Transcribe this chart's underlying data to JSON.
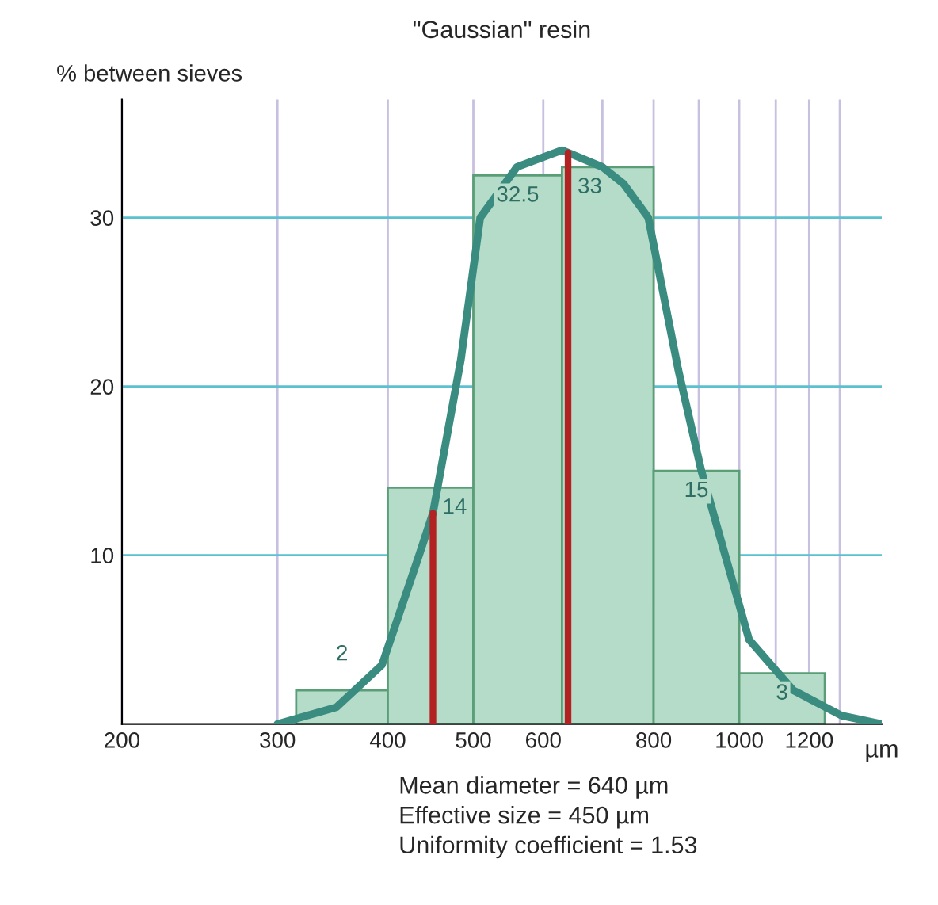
{
  "chart_data": {
    "type": "histogram",
    "title": "\"Gaussian\" resin",
    "ylabel": "% between sieves",
    "xlabel": "µm",
    "bins": [
      315,
      400,
      500,
      630,
      800,
      1000,
      1250
    ],
    "values": [
      2,
      14,
      32.5,
      33,
      15,
      3
    ],
    "color": "#b5dcc8",
    "value_labels": [
      "2",
      "14",
      "32.5",
      "33",
      "15",
      "3"
    ],
    "series": [
      {
        "type": "line",
        "color": "#3a8c80",
        "x": [
          300,
          350,
          394,
          434,
          450,
          484,
          509,
          560,
          630,
          700,
          740,
          789,
          853,
          906,
          964,
          1026,
          1151,
          1306,
          1450
        ],
        "values": [
          0,
          1,
          3.5,
          10,
          12.5,
          21.6,
          30,
          33,
          34,
          33,
          32,
          30,
          21,
          15,
          10,
          5,
          2,
          0.5,
          0
        ]
      }
    ],
    "ref_lines": [
      {
        "axis": "x",
        "value": 450,
        "color": "#b22222"
      },
      {
        "axis": "x",
        "value": 640,
        "color": "#b22222"
      }
    ],
    "log": "x",
    "xlim": [
      200,
      1450
    ],
    "xticks": [
      200,
      300,
      400,
      500,
      600,
      {
        "value": 700,
        "label": null
      },
      800,
      {
        "value": 900,
        "label": null
      },
      1000,
      {
        "value": 1100,
        "label": null
      },
      1200,
      {
        "value": 1300,
        "label": null
      }
    ],
    "ylim": [
      0,
      37
    ],
    "yticks": [
      10,
      20,
      30
    ],
    "grid": true,
    "annotations": [
      "Mean diameter = 640 µm",
      "Effective size = 450 µm",
      "Uniformity coefficient = 1.53"
    ]
  }
}
